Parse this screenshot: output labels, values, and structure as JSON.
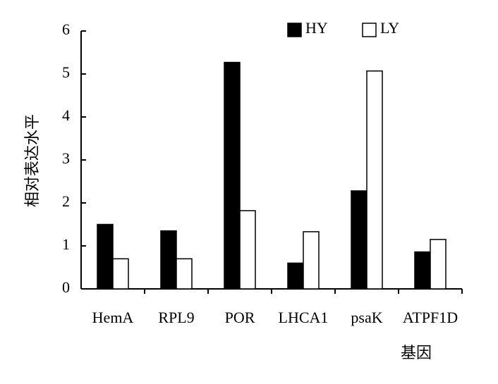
{
  "chart_data": {
    "type": "bar",
    "y_label": "相对表达水平",
    "x_label": "基因",
    "categories": [
      "HemA",
      "RPL9",
      "POR",
      "LHCA1",
      "psaK",
      "ATPF1D"
    ],
    "series": [
      {
        "name": "HY",
        "color": "#000000",
        "values": [
          1.5,
          1.35,
          5.27,
          0.6,
          2.28,
          0.86
        ]
      },
      {
        "name": "LY",
        "color": "#ffffff",
        "values": [
          0.7,
          0.7,
          1.82,
          1.33,
          5.07,
          1.15
        ]
      }
    ],
    "ylim": [
      0,
      6
    ],
    "yticks": [
      0,
      1,
      2,
      3,
      4,
      5,
      6
    ],
    "grid": false,
    "legend": "top"
  }
}
